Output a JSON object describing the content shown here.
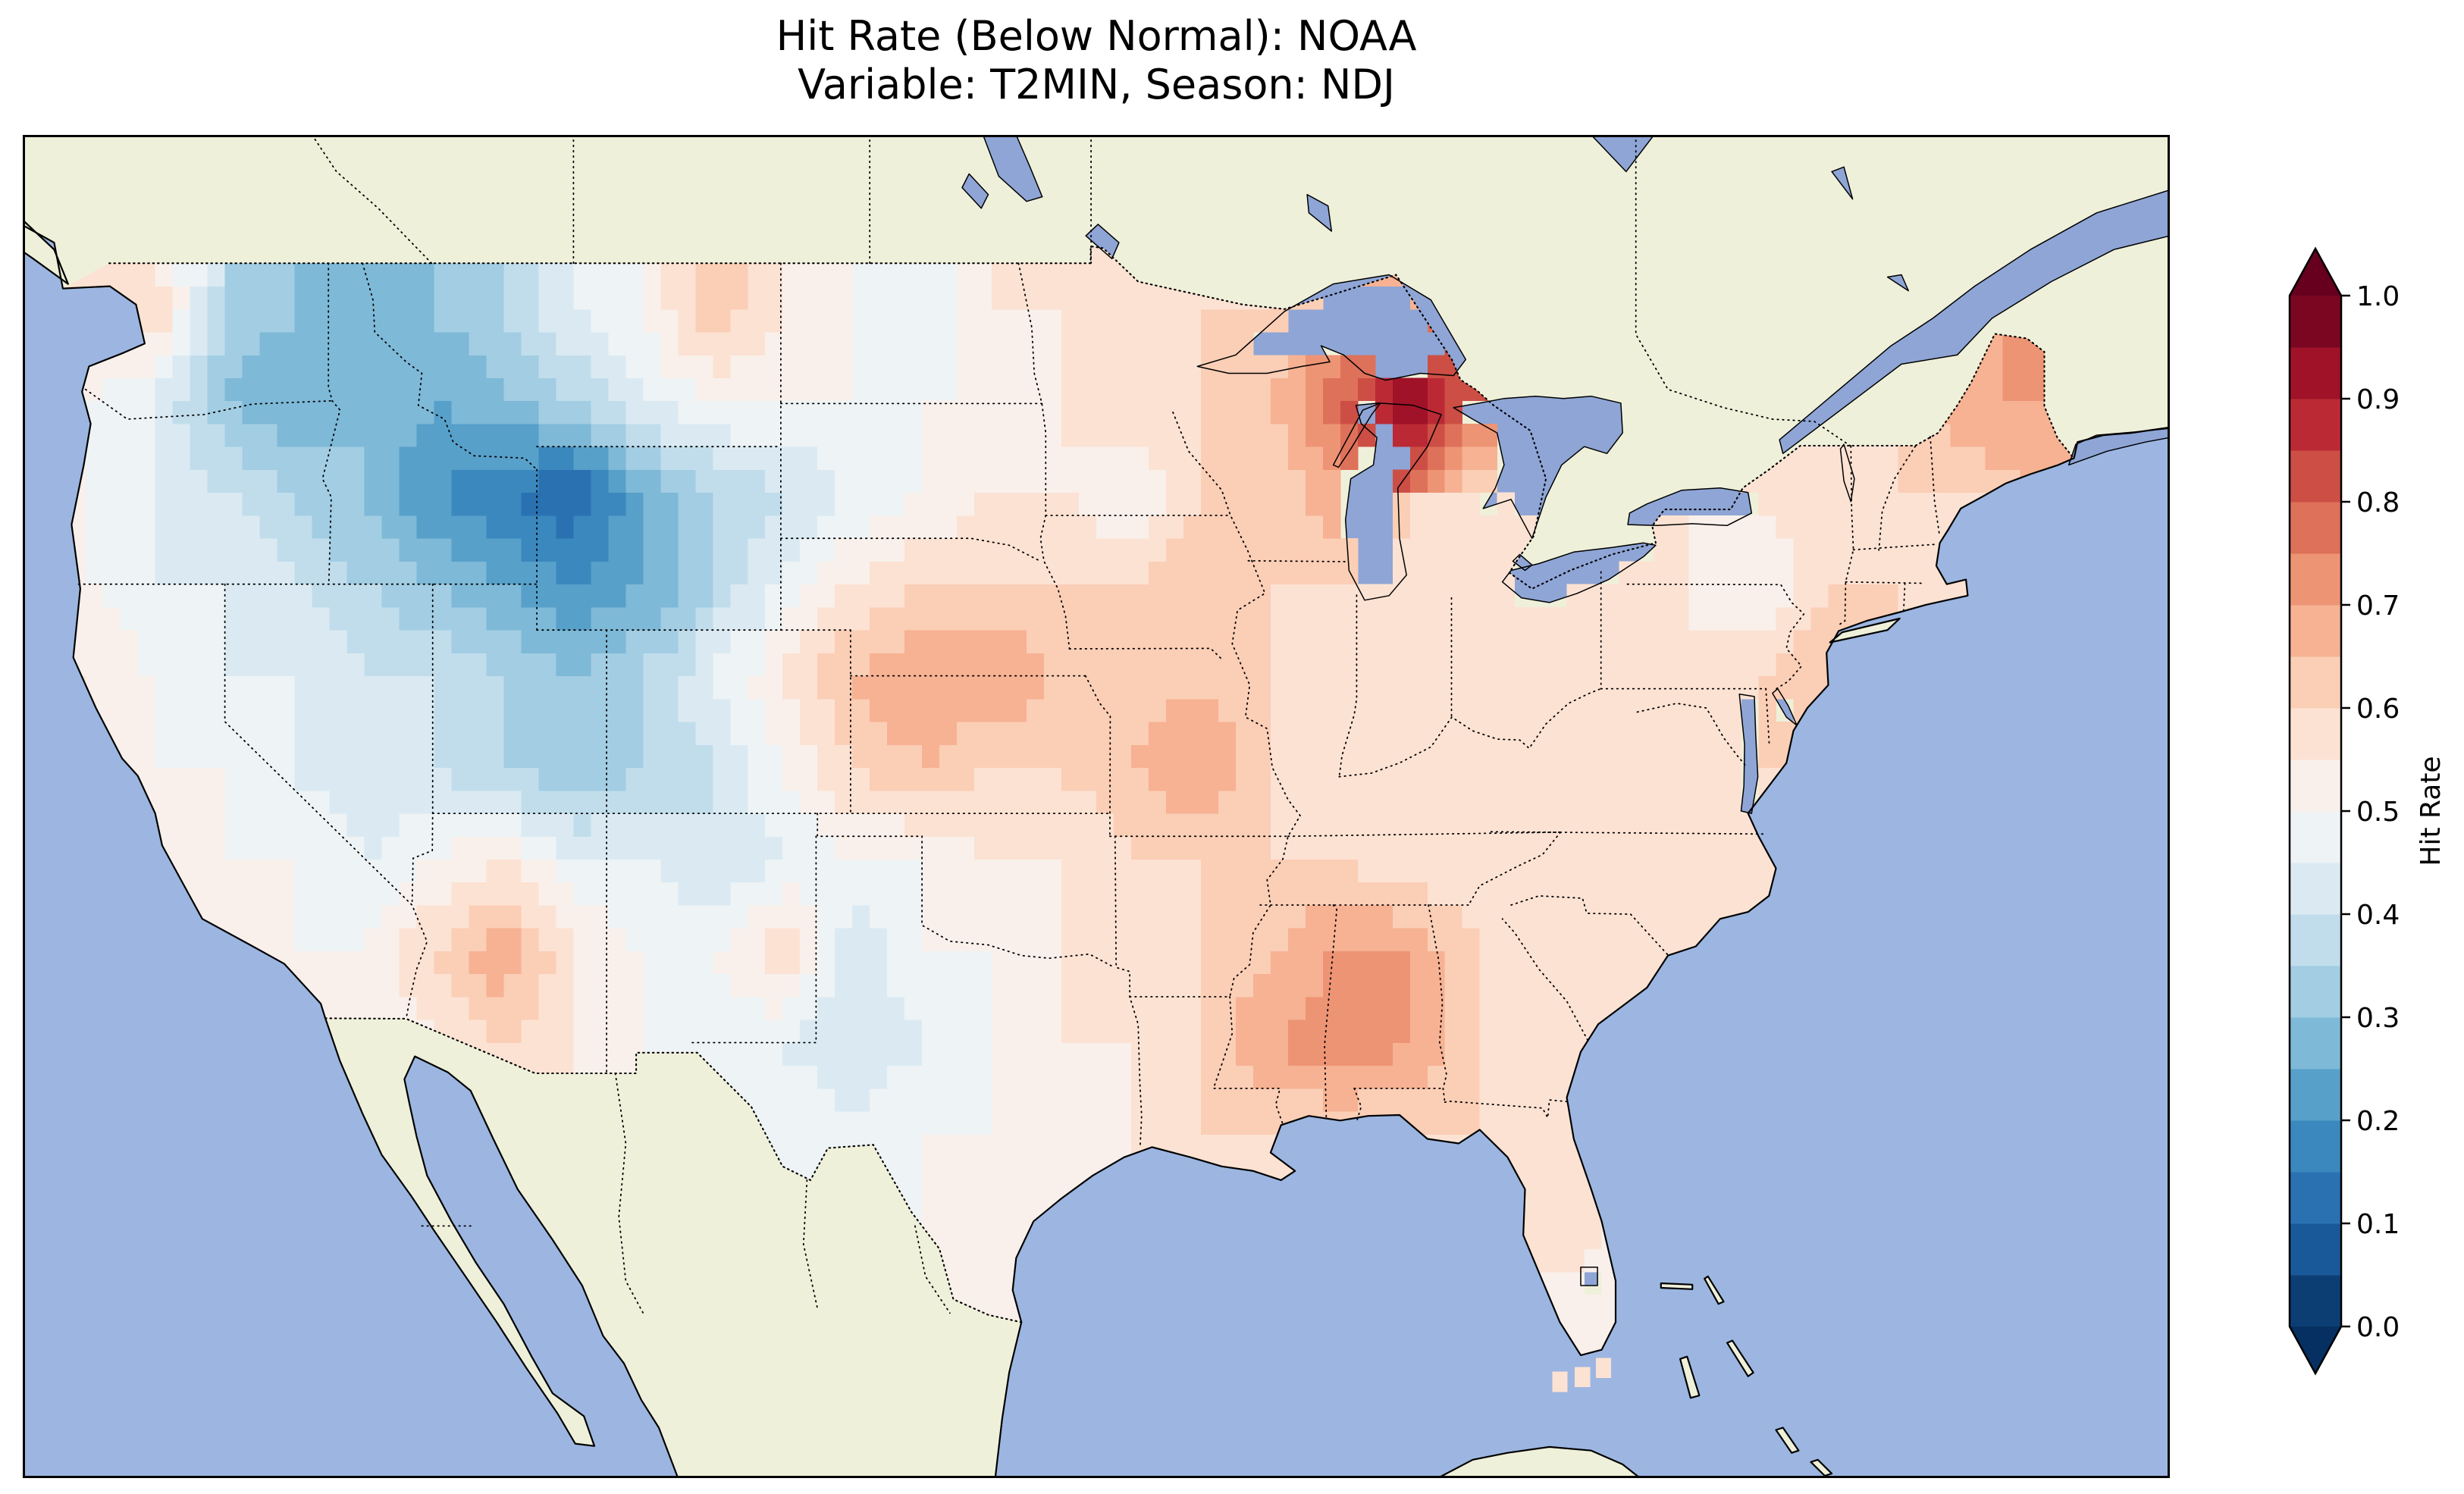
{
  "figure": {
    "title_line1": "Hit Rate (Below Normal): NOAA",
    "title_line2": "Variable: T2MIN, Season: NDJ",
    "background_color": "#ffffff"
  },
  "map": {
    "ocean_color": "#9cb6e1",
    "land_color": "#eff0da",
    "lake_color": "#8ea5d6",
    "coastline_color": "#000000",
    "state_border_style": "dotted",
    "frame_color": "#000000"
  },
  "colorbar": {
    "label": "Hit Rate",
    "orientation": "vertical",
    "ticks": [
      "1.0",
      "0.9",
      "0.8",
      "0.7",
      "0.6",
      "0.5",
      "0.4",
      "0.3",
      "0.2",
      "0.1",
      "0.0"
    ],
    "tick_values": [
      1.0,
      0.9,
      0.8,
      0.7,
      0.6,
      0.5,
      0.4,
      0.3,
      0.2,
      0.1,
      0.0
    ],
    "vmin": 0.0,
    "vmax": 1.0,
    "level_step": 0.05,
    "extend": "both",
    "cmap_name": "RdBu_r",
    "cmap_stops": {
      "positions": [
        0,
        0.1,
        0.2,
        0.3,
        0.4,
        0.5,
        0.6,
        0.7,
        0.8,
        0.9,
        1
      ],
      "colors": [
        "#053061",
        "#2166ac",
        "#4393c3",
        "#92c5de",
        "#d1e5f0",
        "#f7f7f7",
        "#fddbc7",
        "#f4a582",
        "#d6604d",
        "#b2182b",
        "#67001f"
      ]
    }
  },
  "chart_data": {
    "type": "heatmap",
    "title": "Hit Rate (Below Normal): NOAA",
    "subtitle": "Variable: T2MIN, Season: NDJ",
    "dataset": "NOAA",
    "variable": "T2MIN",
    "season": "NDJ",
    "value_label": "Hit Rate",
    "value_range": [
      0.0,
      1.0
    ],
    "region": "Contiguous United States",
    "grid": {
      "lon_centers_start": -124,
      "lon_step": 2,
      "n_lon": 30,
      "lat_centers_start": 48,
      "lat_step": -2,
      "n_lat": 12,
      "values": [
        [
          0.55,
          0.6,
          0.35,
          0.3,
          0.3,
          0.3,
          0.35,
          0.45,
          0.5,
          0.65,
          0.55,
          0.5,
          0.45,
          0.55,
          0.55,
          0.55,
          0.6,
          0.6,
          0.65,
          0.7,
          null,
          null,
          null,
          0.6,
          0.55,
          0.6,
          0.6,
          0.65,
          0.75,
          0.7
        ],
        [
          0.5,
          0.45,
          0.3,
          0.25,
          0.3,
          0.25,
          0.3,
          0.35,
          0.45,
          0.5,
          0.5,
          0.5,
          0.5,
          0.5,
          0.55,
          0.6,
          0.6,
          0.65,
          0.8,
          0.95,
          0.8,
          null,
          null,
          0.55,
          0.6,
          0.55,
          0.6,
          0.7,
          0.7,
          null
        ],
        [
          0.5,
          0.45,
          0.4,
          0.35,
          0.3,
          0.2,
          0.15,
          0.1,
          0.25,
          0.35,
          0.4,
          0.45,
          0.5,
          0.55,
          0.55,
          0.5,
          0.6,
          0.6,
          0.7,
          null,
          0.6,
          0.6,
          null,
          0.55,
          0.55,
          0.6,
          0.6,
          0.6,
          null,
          null
        ],
        [
          0.5,
          0.45,
          0.45,
          0.4,
          0.35,
          0.3,
          0.25,
          0.2,
          0.25,
          0.35,
          0.45,
          0.55,
          0.6,
          0.6,
          0.6,
          0.6,
          0.65,
          0.6,
          0.6,
          0.55,
          0.55,
          0.55,
          0.55,
          0.55,
          0.5,
          0.6,
          0.6,
          0.6,
          null,
          null
        ],
        [
          0.55,
          0.5,
          0.45,
          0.45,
          0.4,
          0.4,
          0.35,
          0.3,
          0.35,
          0.45,
          0.55,
          0.65,
          0.7,
          0.7,
          0.65,
          0.6,
          0.65,
          0.6,
          0.6,
          0.55,
          0.55,
          0.6,
          0.55,
          0.55,
          0.6,
          0.65,
          null,
          null,
          null,
          null
        ],
        [
          null,
          0.5,
          0.5,
          0.45,
          0.4,
          0.4,
          0.35,
          0.3,
          0.35,
          0.4,
          0.5,
          0.6,
          0.65,
          0.6,
          0.6,
          0.65,
          0.7,
          0.6,
          0.6,
          0.55,
          0.55,
          0.55,
          0.55,
          0.55,
          0.6,
          null,
          null,
          null,
          null,
          null
        ],
        [
          null,
          null,
          0.5,
          0.5,
          0.45,
          0.5,
          0.55,
          0.45,
          0.45,
          0.4,
          0.45,
          0.5,
          0.5,
          0.55,
          0.55,
          0.6,
          0.6,
          0.6,
          0.6,
          0.55,
          0.55,
          0.55,
          0.55,
          0.6,
          0.6,
          null,
          null,
          null,
          null,
          null
        ],
        [
          null,
          null,
          0.55,
          0.5,
          0.5,
          0.6,
          0.7,
          0.55,
          0.5,
          0.5,
          0.6,
          0.4,
          0.5,
          0.5,
          0.55,
          0.6,
          0.6,
          0.65,
          0.7,
          0.7,
          0.6,
          0.55,
          0.55,
          0.6,
          null,
          null,
          null,
          null,
          null,
          null
        ],
        [
          null,
          null,
          null,
          null,
          0.5,
          0.55,
          0.6,
          0.55,
          0.5,
          0.45,
          0.45,
          0.4,
          0.45,
          0.5,
          0.55,
          0.55,
          0.6,
          0.7,
          0.75,
          0.7,
          0.6,
          0.6,
          0.55,
          null,
          null,
          null,
          null,
          null,
          null,
          null
        ],
        [
          null,
          null,
          null,
          null,
          null,
          null,
          null,
          null,
          null,
          0.45,
          0.5,
          0.45,
          0.5,
          0.5,
          0.5,
          0.55,
          0.6,
          0.6,
          0.6,
          0.6,
          0.6,
          0.55,
          0.55,
          null,
          null,
          null,
          null,
          null,
          null,
          null
        ],
        [
          null,
          null,
          null,
          null,
          null,
          null,
          null,
          null,
          null,
          null,
          null,
          null,
          0.5,
          0.5,
          null,
          null,
          null,
          null,
          null,
          null,
          null,
          0.6,
          0.55,
          null,
          null,
          null,
          null,
          null,
          null,
          null
        ],
        [
          null,
          null,
          null,
          null,
          null,
          null,
          null,
          null,
          null,
          null,
          null,
          null,
          null,
          0.5,
          null,
          null,
          null,
          null,
          null,
          null,
          null,
          0.5,
          0.5,
          null,
          null,
          null,
          null,
          null,
          null,
          null
        ]
      ]
    },
    "extra_cells": [
      {
        "lon": -81.7,
        "lat": 24.6,
        "value": 0.55
      },
      {
        "lon": -81.05,
        "lat": 24.7,
        "value": 0.55
      },
      {
        "lon": -80.45,
        "lat": 24.9,
        "value": 0.55
      }
    ]
  }
}
